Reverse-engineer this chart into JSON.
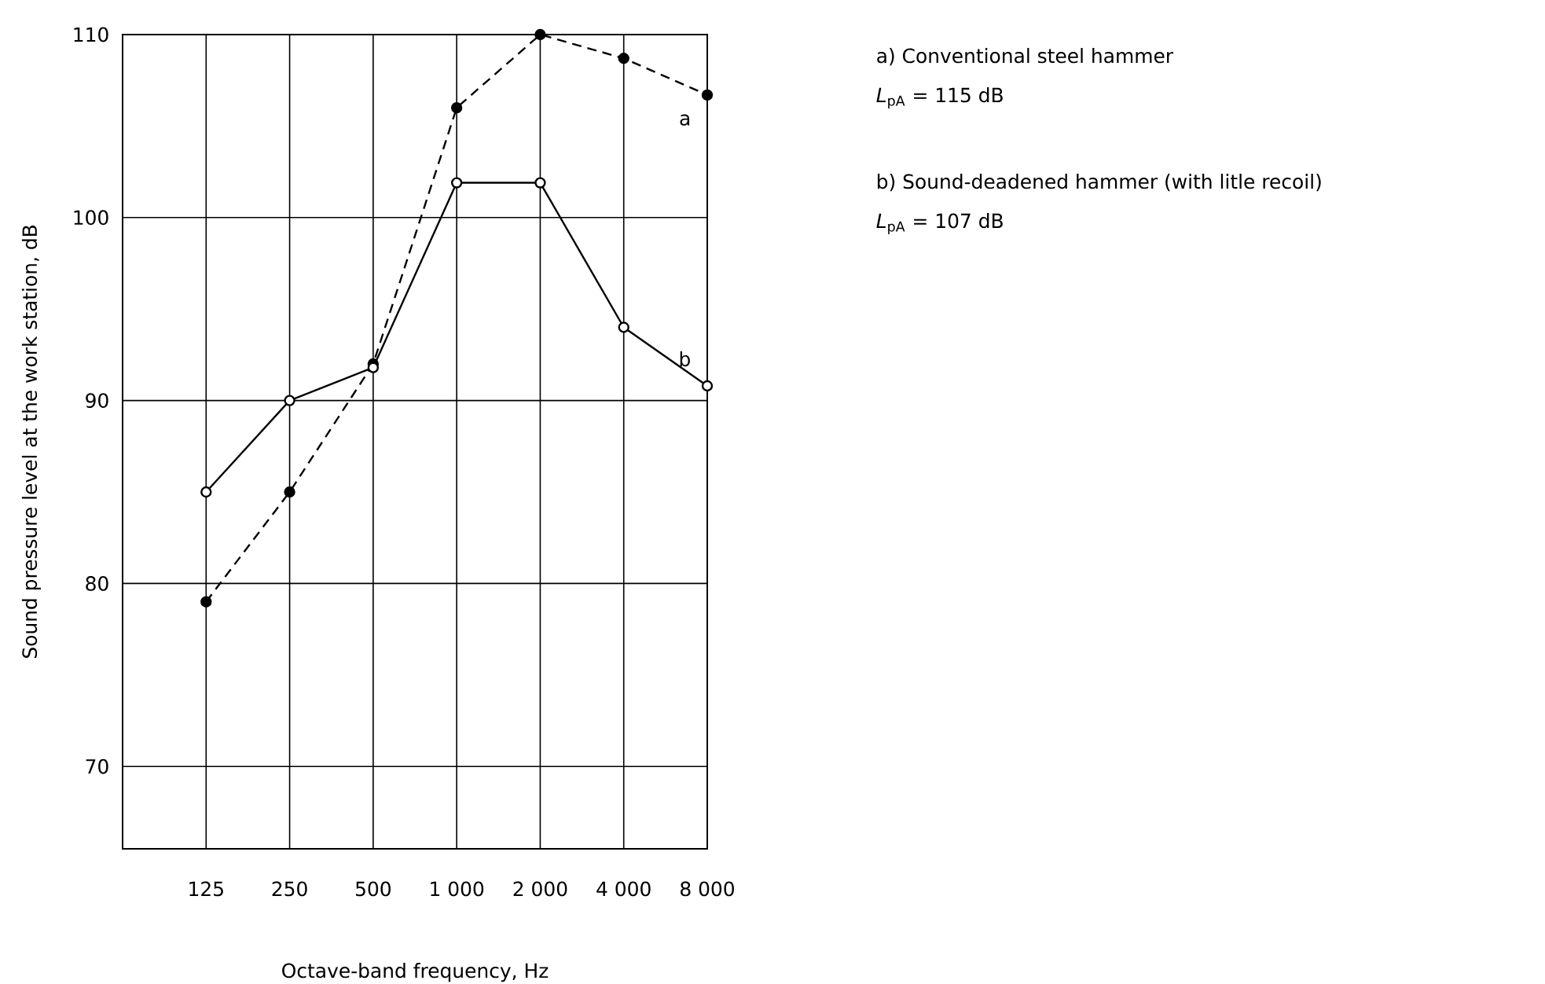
{
  "chart_data": {
    "type": "line",
    "ylabel": "Sound pressure level at the work station, dB",
    "xlabel": "Octave-band frequency, Hz",
    "categories": [
      "125",
      "250",
      "500",
      "1 000",
      "2 000",
      "4 000",
      "8 000"
    ],
    "ylim": [
      65.5,
      110
    ],
    "yticks": [
      70,
      80,
      90,
      100,
      110
    ],
    "grid": true,
    "series": [
      {
        "name": "a",
        "color": "#000000",
        "line_style": "dashed",
        "marker": "circle",
        "values": [
          79,
          85,
          92,
          106,
          110,
          108.7,
          106.7
        ]
      },
      {
        "name": "b",
        "color": "#000000",
        "line_style": "solid",
        "marker": "circle",
        "values": [
          85,
          90,
          91.8,
          101.9,
          101.9,
          94,
          90.8
        ]
      }
    ],
    "annotations": [
      "a)  Conventional steel hammer",
      "*L*$_{pA}$ = 115 dB",
      "b)  Sound-deadened hammer (with litle recoil)",
      "*L*$_{pA}$ = 107 dB"
    ]
  }
}
